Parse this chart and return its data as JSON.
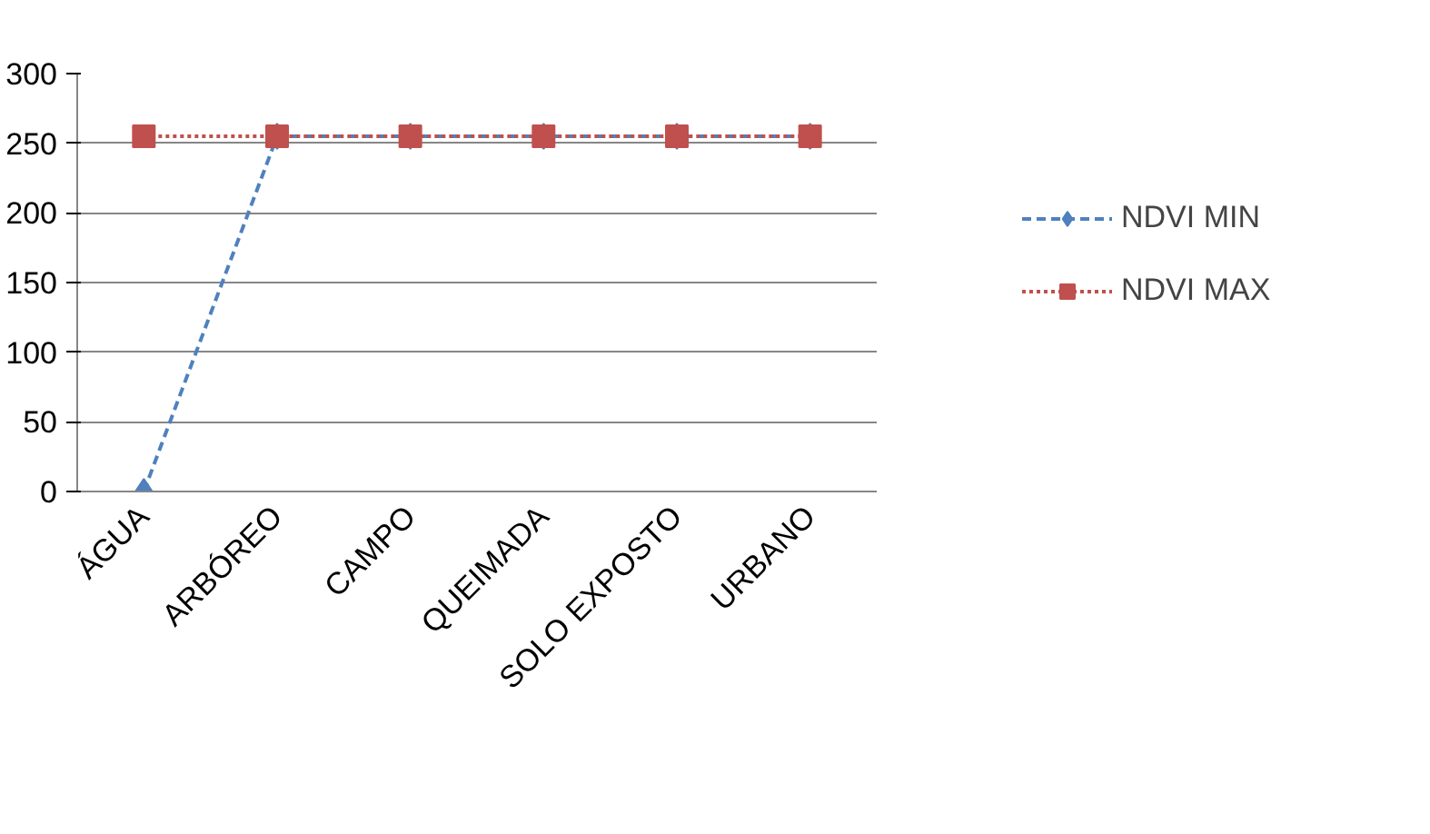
{
  "chart_data": {
    "type": "line",
    "categories": [
      "ÁGUA",
      "ARBÓREO",
      "CAMPO",
      "QUEIMADA",
      "SOLO EXPOSTO",
      "URBANO"
    ],
    "series": [
      {
        "name": "NDVI MIN",
        "color": "#4f81bd",
        "values": [
          0,
          255,
          255,
          255,
          255,
          255
        ],
        "line_style": "dashed",
        "marker": "diamond"
      },
      {
        "name": "NDVI MAX",
        "color": "#c0504d",
        "values": [
          255,
          255,
          255,
          255,
          255,
          255
        ],
        "line_style": "dotted",
        "marker": "square"
      }
    ],
    "ylim": [
      0,
      300
    ],
    "yticks": [
      0,
      50,
      100,
      150,
      200,
      250,
      300
    ],
    "grid": "y",
    "legend": "right"
  }
}
